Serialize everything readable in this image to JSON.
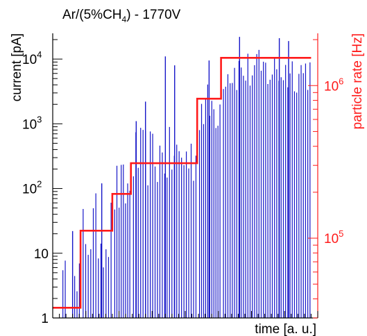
{
  "chart_data": {
    "type": "bar",
    "title": "Ar/(5%CH",
    "title_subscript": "4",
    "title_suffix": ") - 1770V",
    "xlabel": "time [a. u.]",
    "ylabel_left": "current [pA]",
    "ylabel_right": "particle rate [Hz]",
    "left_axis": {
      "scale": "log",
      "range": [
        1,
        25000
      ],
      "tick_labels": [
        {
          "value": 1,
          "text": "1",
          "exp": ""
        },
        {
          "value": 10,
          "text": "10",
          "exp": ""
        },
        {
          "value": 100,
          "text": "10",
          "exp": "2"
        },
        {
          "value": 1000,
          "text": "10",
          "exp": "3"
        },
        {
          "value": 10000,
          "text": "10",
          "exp": "4"
        }
      ]
    },
    "right_axis": {
      "scale": "log",
      "range": [
        30000,
        2200000
      ],
      "tick_labels": [
        {
          "value": 100000,
          "text": "10",
          "exp": "5"
        },
        {
          "value": 1000000,
          "text": "10",
          "exp": "6"
        }
      ]
    },
    "x_range": [
      0,
      100
    ],
    "grid": false,
    "colors": {
      "current": "#1515c8",
      "rate": "#ff1a1a",
      "axis": "#000000",
      "right_axis": "#ff1a1a"
    },
    "series": [
      {
        "type": "spikes",
        "axis": "left",
        "segments": [
          {
            "x_start": 2.5,
            "x_end": 10.5,
            "count": 9,
            "mean": 2.0,
            "spread": 4.5
          },
          {
            "x_start": 11,
            "x_end": 22.5,
            "count": 12,
            "mean": 22,
            "spread": 4.0
          },
          {
            "x_start": 23,
            "x_end": 29.5,
            "count": 8,
            "mean": 90,
            "spread": 3.0
          },
          {
            "x_start": 30,
            "x_end": 54.5,
            "count": 27,
            "mean": 300,
            "spread": 3.0
          },
          {
            "x_start": 55,
            "x_end": 63.5,
            "count": 11,
            "mean": 1800,
            "spread": 2.5
          },
          {
            "x_start": 64,
            "x_end": 97.5,
            "count": 40,
            "mean": 6500,
            "spread": 2.2
          }
        ],
        "highlights": [
          {
            "x": 7.5,
            "value": 22
          },
          {
            "x": 18.5,
            "value": 120
          },
          {
            "x": 31.5,
            "value": 1100
          },
          {
            "x": 35.0,
            "value": 2200
          },
          {
            "x": 42.5,
            "value": 11000
          },
          {
            "x": 46.0,
            "value": 8000
          },
          {
            "x": 59.0,
            "value": 9500
          },
          {
            "x": 70.5,
            "value": 22000
          },
          {
            "x": 85.5,
            "value": 21000
          },
          {
            "x": 89.0,
            "value": 19000
          }
        ]
      },
      {
        "type": "step",
        "axis": "right",
        "points": [
          {
            "x_start": 0,
            "x_end": 10.5,
            "value": 35000
          },
          {
            "x_start": 10.5,
            "x_end": 22.5,
            "value": 112000
          },
          {
            "x_start": 22.5,
            "x_end": 29.5,
            "value": 195000
          },
          {
            "x_start": 29.5,
            "x_end": 54.5,
            "value": 310000
          },
          {
            "x_start": 54.5,
            "x_end": 63.5,
            "value": 820000
          },
          {
            "x_start": 63.5,
            "x_end": 97.5,
            "value": 1520000
          }
        ]
      }
    ]
  }
}
